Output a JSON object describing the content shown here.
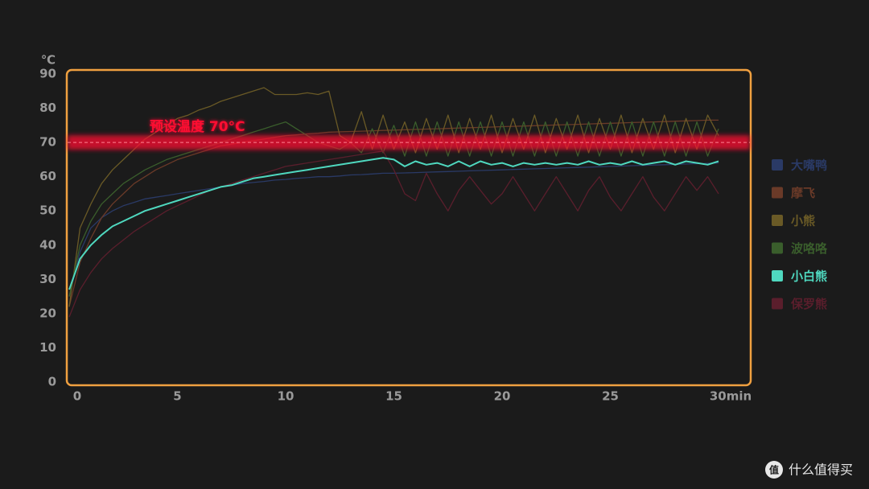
{
  "chart_data": {
    "type": "line",
    "y_unit": "℃",
    "x": [
      0,
      0.5,
      1,
      1.5,
      2,
      2.5,
      3,
      3.5,
      4,
      4.5,
      5,
      5.5,
      6,
      6.5,
      7,
      7.5,
      8,
      8.5,
      9,
      9.5,
      10,
      10.5,
      11,
      11.5,
      12,
      12.5,
      13,
      13.5,
      14,
      14.5,
      15,
      15.5,
      16,
      16.5,
      17,
      17.5,
      18,
      18.5,
      19,
      19.5,
      20,
      20.5,
      21,
      21.5,
      22,
      22.5,
      23,
      23.5,
      24,
      24.5,
      25,
      25.5,
      26,
      26.5,
      27,
      27.5,
      28,
      28.5,
      29,
      29.5,
      30
    ],
    "xlim": [
      0,
      30
    ],
    "xticks": [
      0,
      5,
      10,
      15,
      20,
      25,
      {
        "value": 30,
        "label": "30min"
      }
    ],
    "ylim": [
      0,
      90
    ],
    "yticks": [
      0,
      10,
      20,
      30,
      40,
      50,
      60,
      70,
      80,
      90
    ],
    "threshold": 70,
    "threshold_label": "预设温度 70°C",
    "threshold_color": "#ff1030",
    "frame_color": "#f0a040",
    "highlight": "小白熊",
    "series": [
      {
        "name": "大嘴鸭",
        "color": "#2a3a66",
        "values": [
          25,
          38,
          45,
          48,
          50,
          51.5,
          52.5,
          53.5,
          54,
          54.5,
          55,
          55.5,
          56,
          56.5,
          57,
          57.5,
          58,
          58.3,
          58.6,
          59,
          59.2,
          59.5,
          59.7,
          60,
          60,
          60.2,
          60.5,
          60.6,
          60.8,
          61,
          61,
          61.1,
          61.2,
          61.3,
          61.4,
          61.5,
          61.6,
          61.7,
          61.8,
          61.9,
          62,
          62.1,
          62.2,
          62.3,
          62.4,
          62.5,
          62.6,
          62.7,
          62.8,
          62.9,
          63,
          63.1,
          63.2,
          63.3,
          63.4,
          63.5,
          63.6,
          63.7,
          63.8,
          63.9,
          64
        ]
      },
      {
        "name": "摩飞",
        "color": "#6a3a28",
        "values": [
          22,
          35,
          42,
          48,
          52,
          55,
          58,
          60,
          62,
          63.5,
          65,
          66,
          67,
          68,
          69,
          69.5,
          70,
          70.5,
          71,
          71.5,
          72,
          72.2,
          72.5,
          72.7,
          73,
          73.1,
          73.2,
          73.3,
          73.4,
          73.5,
          73.6,
          73.7,
          73.8,
          73.9,
          74,
          74.1,
          74.2,
          74.3,
          74.4,
          74.5,
          74.6,
          74.7,
          74.8,
          74.9,
          75,
          75.1,
          75.2,
          75.3,
          75.4,
          75.5,
          75.6,
          75.7,
          75.8,
          75.9,
          76,
          76.1,
          76.2,
          76.3,
          76.4,
          76.5,
          76.5
        ]
      },
      {
        "name": "小熊",
        "color": "#6a5a26",
        "values": [
          22,
          45,
          52,
          58,
          62,
          65,
          68,
          71,
          73,
          75,
          77,
          78,
          79.5,
          80.5,
          82,
          83,
          84,
          85,
          86,
          84,
          84,
          84,
          84.5,
          84,
          85,
          72,
          70,
          79,
          68,
          78,
          68,
          76,
          67,
          77,
          68,
          78,
          67,
          77,
          68,
          78,
          67,
          77,
          68,
          78,
          67,
          77,
          68,
          78,
          67,
          77,
          68,
          78,
          67,
          77,
          68,
          78,
          67,
          77,
          68,
          78,
          72
        ]
      },
      {
        "name": "波咯咯",
        "color": "#3a5e2c",
        "values": [
          25,
          40,
          47,
          52,
          55,
          58,
          60,
          62,
          63.5,
          65,
          66,
          67,
          68,
          69,
          70,
          71,
          72,
          73,
          74,
          75,
          76,
          74,
          72,
          70,
          69,
          68,
          70,
          67,
          74,
          67,
          75,
          66,
          76,
          66,
          76,
          66,
          76,
          66,
          76,
          66,
          76,
          66,
          76,
          66,
          76,
          66,
          76,
          66,
          76,
          66,
          76,
          66,
          76,
          66,
          76,
          66,
          76,
          66,
          76,
          66,
          74
        ]
      },
      {
        "name": "小白熊",
        "color": "#4fd8bf",
        "values": [
          27,
          36,
          40,
          43,
          45.5,
          47,
          48.5,
          50,
          51,
          52,
          53,
          54,
          55,
          56,
          57,
          57.5,
          58.5,
          59.5,
          60,
          60.5,
          61,
          61.5,
          62,
          62.5,
          63,
          63.5,
          64,
          64.5,
          65,
          65.5,
          65,
          63,
          64.5,
          63.5,
          64,
          63,
          64.5,
          63,
          64.5,
          63.5,
          64,
          63,
          64,
          63.5,
          64,
          63.5,
          64,
          63.5,
          64.5,
          63.5,
          64,
          63.5,
          64.5,
          63.5,
          64,
          64.5,
          63.5,
          64.5,
          64,
          63.5,
          64.5
        ]
      },
      {
        "name": "保罗熊",
        "color": "#5a1e2c",
        "values": [
          19,
          27,
          32,
          36,
          39,
          41.5,
          44,
          46,
          48,
          50,
          51.5,
          53,
          54.5,
          56,
          57,
          58,
          59,
          60,
          61,
          62,
          63,
          63.5,
          64,
          64.5,
          65,
          65.5,
          66,
          66.5,
          67,
          67.5,
          62,
          55,
          53,
          61,
          55,
          50,
          56,
          60,
          56,
          52,
          55,
          60,
          55,
          50,
          55,
          60,
          55,
          50,
          56,
          60,
          54,
          50,
          55,
          60,
          54,
          50,
          55,
          60,
          56,
          60,
          55
        ]
      }
    ]
  },
  "watermark": {
    "icon": "值",
    "text": "什么值得买"
  }
}
